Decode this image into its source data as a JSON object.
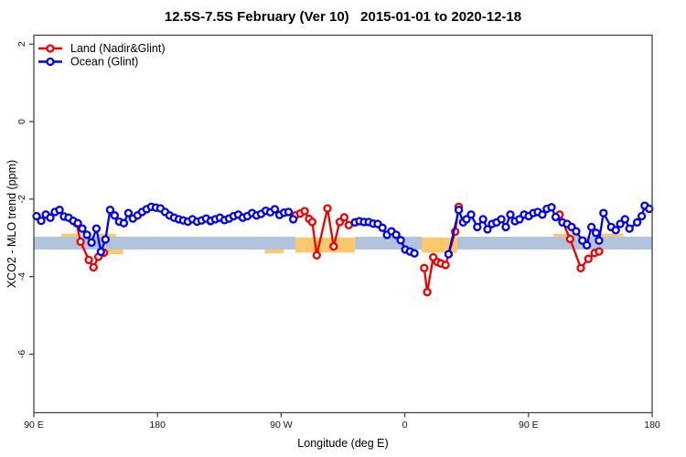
{
  "chart_data": {
    "type": "line",
    "title": "12.5S-7.5S February (Ver 10)   2015-01-01 to 2020-12-18",
    "xlabel": "Longitude (deg E)",
    "ylabel": "XCO2 - MLO trend (ppm)",
    "xlim": [
      90,
      540
    ],
    "ylim": [
      -7.51,
      2.23
    ],
    "grid": false,
    "xticks": [
      {
        "value": 90,
        "label": "90 E"
      },
      {
        "value": 180,
        "label": "180"
      },
      {
        "value": 270,
        "label": "90 W"
      },
      {
        "value": 360,
        "label": "0"
      },
      {
        "value": 450,
        "label": "90 E"
      },
      {
        "value": 540,
        "label": "180"
      }
    ],
    "yticks": [
      {
        "value": 2,
        "label": "2"
      },
      {
        "value": 0,
        "label": "0"
      },
      {
        "value": -2,
        "label": "-2"
      },
      {
        "value": -4,
        "label": "-4"
      },
      {
        "value": -6,
        "label": "-6"
      }
    ],
    "reference_band": {
      "color": "#b0c4de",
      "y_top": -2.97,
      "y_bottom": -3.3,
      "segments": [
        [
          90,
          280.4
        ],
        [
          323.7,
          372.3
        ],
        [
          398.2,
          540
        ]
      ]
    },
    "highlight_band": {
      "color": "#fcc86a",
      "patches": [
        {
          "x": [
            280.4,
            323.7
          ],
          "y_top": -2.99,
          "y_bottom": -3.38
        },
        {
          "x": [
            372.3,
            398.2
          ],
          "y_top": -2.99,
          "y_bottom": -3.38
        }
      ],
      "slivers": [
        {
          "x": [
            110,
            122
          ],
          "y_top": -2.89,
          "y_bottom": -2.97
        },
        {
          "x": [
            137,
            150
          ],
          "y_top": -2.89,
          "y_bottom": -2.97
        },
        {
          "x": [
            144,
            155
          ],
          "y_top": -3.3,
          "y_bottom": -3.42
        },
        {
          "x": [
            258,
            272
          ],
          "y_top": -3.3,
          "y_bottom": -3.4
        },
        {
          "x": [
            468,
            486
          ],
          "y_top": -2.89,
          "y_bottom": -2.97
        },
        {
          "x": [
            496,
            519
          ],
          "y_top": -2.89,
          "y_bottom": -2.97
        }
      ]
    },
    "legend": {
      "position": "top-left"
    },
    "series": [
      {
        "name": "Land (Nadir&Glint)",
        "color": "#ee0000",
        "marker": "open-circle",
        "segments": [
          [
            [
              121.0,
              -2.62
            ],
            [
              124.0,
              -3.1
            ],
            [
              130.0,
              -3.57
            ],
            [
              133.5,
              -3.76
            ],
            [
              137.0,
              -3.49
            ],
            [
              141.0,
              -3.38
            ]
          ],
          [
            [
              218.5,
              -2.57
            ]
          ],
          [
            [
              280.4,
              -2.42
            ],
            [
              283.9,
              -2.37
            ],
            [
              287.1,
              -2.31
            ],
            [
              290.4,
              -2.51
            ],
            [
              292.6,
              -2.59
            ],
            [
              295.9,
              -3.45
            ],
            [
              303.7,
              -2.24
            ],
            [
              308.2,
              -3.22
            ],
            [
              312.6,
              -2.59
            ],
            [
              315.9,
              -2.47
            ],
            [
              319.2,
              -2.67
            ]
          ],
          [
            [
              374.1,
              -3.78
            ],
            [
              376.3,
              -4.4
            ],
            [
              380.7,
              -3.5
            ],
            [
              383.6,
              -3.62
            ],
            [
              386.3,
              -3.66
            ],
            [
              389.6,
              -3.7
            ],
            [
              396.6,
              -2.84
            ],
            [
              399.2,
              -2.2
            ]
          ],
          [
            [
              472.6,
              -2.4
            ],
            [
              480.3,
              -3.03
            ],
            [
              488.1,
              -3.78
            ],
            [
              493.6,
              -3.54
            ],
            [
              498.1,
              -3.39
            ],
            [
              501.4,
              -3.35
            ]
          ]
        ]
      },
      {
        "name": "Ocean (Glint)",
        "color": "#0000ee",
        "marker": "open-circle",
        "segments": [
          [
            [
              92.0,
              -2.44
            ],
            [
              95.3,
              -2.56
            ],
            [
              98.7,
              -2.4
            ],
            [
              102.0,
              -2.48
            ],
            [
              105.3,
              -2.33
            ],
            [
              108.7,
              -2.28
            ],
            [
              112.0,
              -2.45
            ],
            [
              115.3,
              -2.48
            ],
            [
              118.7,
              -2.56
            ],
            [
              122.0,
              -2.62
            ],
            [
              125.3,
              -2.76
            ],
            [
              128.7,
              -2.92
            ],
            [
              132.0,
              -3.12
            ],
            [
              135.5,
              -2.76
            ],
            [
              138.8,
              -3.36
            ],
            [
              142.1,
              -3.04
            ],
            [
              145.5,
              -2.28
            ],
            [
              148.8,
              -2.42
            ],
            [
              152.1,
              -2.58
            ],
            [
              155.5,
              -2.62
            ],
            [
              158.8,
              -2.36
            ],
            [
              162.1,
              -2.5
            ],
            [
              165.5,
              -2.42
            ],
            [
              168.8,
              -2.33
            ],
            [
              172.1,
              -2.26
            ],
            [
              175.5,
              -2.2
            ],
            [
              178.8,
              -2.22
            ],
            [
              182.1,
              -2.24
            ],
            [
              185.5,
              -2.33
            ],
            [
              188.8,
              -2.42
            ],
            [
              192.1,
              -2.48
            ],
            [
              195.5,
              -2.52
            ],
            [
              198.8,
              -2.55
            ],
            [
              202.1,
              -2.58
            ],
            [
              205.4,
              -2.52
            ],
            [
              208.8,
              -2.58
            ],
            [
              212.1,
              -2.55
            ],
            [
              215.4,
              -2.5
            ],
            [
              218.8,
              -2.56
            ],
            [
              222.1,
              -2.52
            ],
            [
              225.4,
              -2.48
            ],
            [
              228.8,
              -2.54
            ],
            [
              232.1,
              -2.5
            ],
            [
              235.4,
              -2.44
            ],
            [
              238.8,
              -2.4
            ],
            [
              242.1,
              -2.48
            ],
            [
              245.4,
              -2.44
            ],
            [
              248.8,
              -2.36
            ],
            [
              252.1,
              -2.42
            ],
            [
              255.4,
              -2.38
            ],
            [
              258.8,
              -2.3
            ],
            [
              262.1,
              -2.34
            ],
            [
              265.4,
              -2.26
            ],
            [
              268.8,
              -2.41
            ],
            [
              272.1,
              -2.35
            ],
            [
              275.4,
              -2.33
            ],
            [
              278.8,
              -2.52
            ]
          ],
          [
            [
              323.7,
              -2.6
            ],
            [
              327.0,
              -2.57
            ],
            [
              330.3,
              -2.59
            ],
            [
              333.7,
              -2.59
            ],
            [
              337.0,
              -2.63
            ],
            [
              340.3,
              -2.64
            ],
            [
              343.7,
              -2.74
            ],
            [
              347.0,
              -2.92
            ],
            [
              350.3,
              -2.83
            ],
            [
              353.7,
              -2.92
            ],
            [
              357.0,
              -3.06
            ],
            [
              360.3,
              -3.3
            ],
            [
              363.7,
              -3.35
            ],
            [
              367.0,
              -3.4
            ]
          ],
          [
            [
              391.8,
              -3.42
            ],
            [
              399.3,
              -2.28
            ],
            [
              402.4,
              -2.6
            ],
            [
              404.9,
              -2.52
            ],
            [
              408.2,
              -2.4
            ],
            [
              412.7,
              -2.72
            ],
            [
              416.9,
              -2.52
            ],
            [
              420.2,
              -2.78
            ],
            [
              423.5,
              -2.64
            ],
            [
              426.8,
              -2.6
            ],
            [
              430.2,
              -2.52
            ],
            [
              433.5,
              -2.72
            ],
            [
              436.8,
              -2.4
            ],
            [
              440.2,
              -2.57
            ],
            [
              443.5,
              -2.52
            ],
            [
              446.8,
              -2.4
            ],
            [
              450.1,
              -2.44
            ],
            [
              453.5,
              -2.36
            ],
            [
              456.8,
              -2.33
            ],
            [
              460.1,
              -2.4
            ],
            [
              463.4,
              -2.25
            ],
            [
              466.8,
              -2.21
            ],
            [
              469.8,
              -2.46
            ],
            [
              474.7,
              -2.6
            ],
            [
              478.1,
              -2.64
            ],
            [
              481.4,
              -2.72
            ],
            [
              484.7,
              -2.83
            ],
            [
              489.2,
              -3.07
            ],
            [
              492.5,
              -3.19
            ],
            [
              495.8,
              -2.72
            ],
            [
              499.1,
              -2.87
            ],
            [
              501.3,
              -3.07
            ],
            [
              504.6,
              -2.36
            ],
            [
              510.2,
              -2.72
            ],
            [
              513.5,
              -2.8
            ],
            [
              516.8,
              -2.64
            ],
            [
              520.2,
              -2.52
            ],
            [
              523.5,
              -2.76
            ],
            [
              529.1,
              -2.6
            ],
            [
              532.4,
              -2.44
            ],
            [
              534.6,
              -2.17
            ],
            [
              537.9,
              -2.25
            ]
          ]
        ]
      }
    ]
  }
}
